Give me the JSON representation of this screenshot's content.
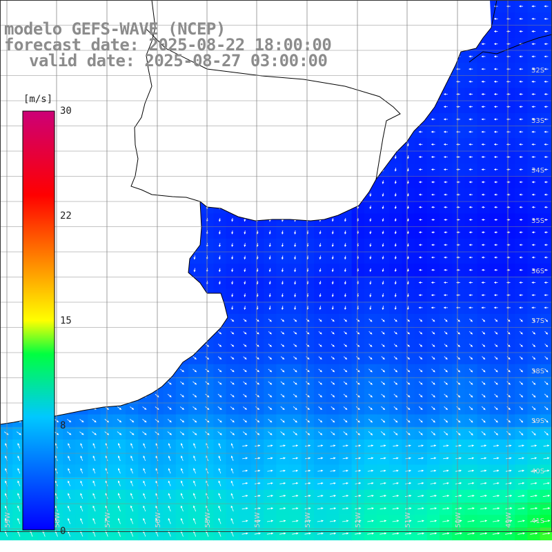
{
  "header": {
    "title": "modelo GEFS-WAVE (NCEP)",
    "forecast_date": "forecast date: 2025-08-22 18:00:00",
    "valid_date": "valid date: 2025-08-27 03:00:00"
  },
  "colorbar": {
    "unit": "[m/s]",
    "min": 0,
    "max": 30,
    "tick_labels": [
      "30",
      "22",
      "15",
      "8",
      "0"
    ],
    "tick_values": [
      30,
      22,
      15,
      8,
      0
    ],
    "colors": [
      "#0000ff",
      "#00a0ff",
      "#00ffff",
      "#00ff00",
      "#ffff00",
      "#ff9900",
      "#ff0000",
      "#cc0077"
    ]
  },
  "map": {
    "lat_labels": [
      "32S",
      "33S",
      "34S",
      "35S",
      "36S",
      "37S",
      "38S",
      "39S",
      "40S",
      "41S"
    ],
    "lon_labels": [
      "59W",
      "58W",
      "57W",
      "56W",
      "55W",
      "54W",
      "53W",
      "52W",
      "51W",
      "50W",
      "49W"
    ],
    "land_color": "#ffffff",
    "coast_color": "#000000",
    "grid_color": "#888888"
  }
}
